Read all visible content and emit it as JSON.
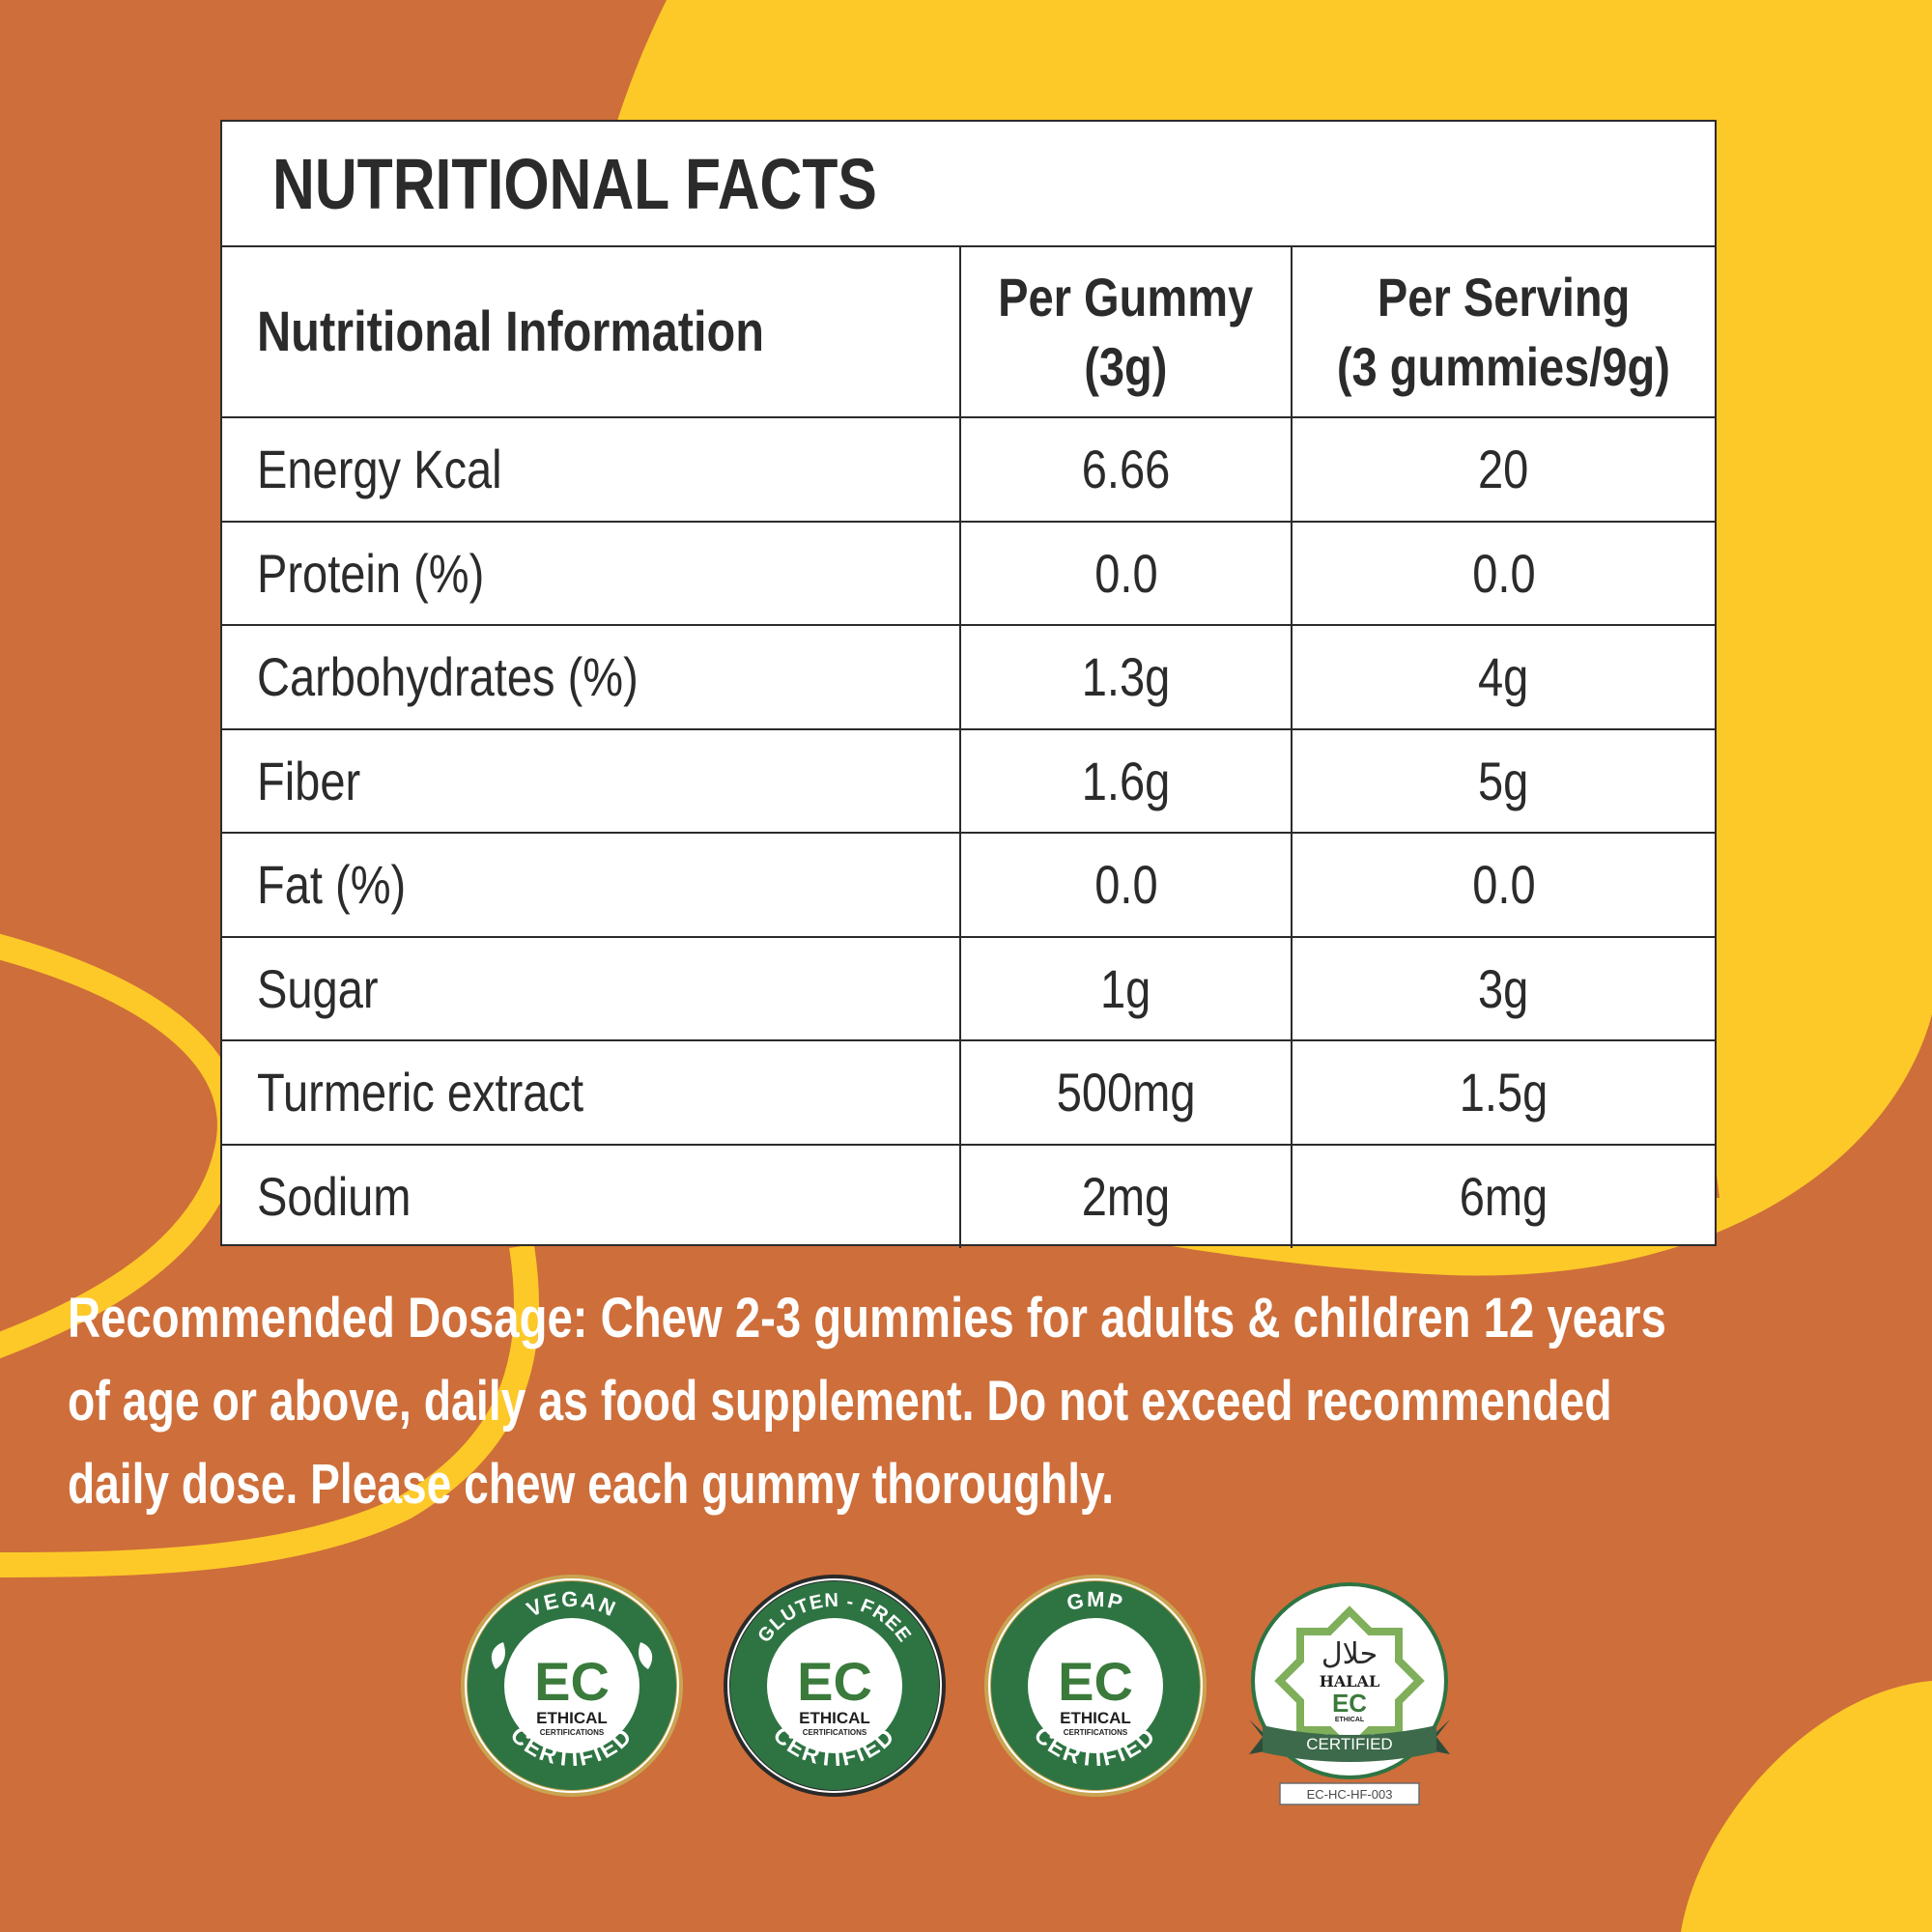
{
  "colors": {
    "background_orange": "#CE6E3A",
    "accent_yellow": "#FDC929",
    "text_dark": "#2B2B2B",
    "badge_green": "#2E7443",
    "badge_gold": "#C9A451",
    "badge_black": "#2A2A2A"
  },
  "facts": {
    "title": "NUTRITIONAL FACTS",
    "headers": {
      "label": "Nutritional Information",
      "per_gummy_line1": "Per Gummy",
      "per_gummy_line2": "(3g)",
      "per_serving_line1": "Per Serving",
      "per_serving_line2": "(3 gummies/9g)"
    },
    "rows": [
      {
        "name": "Energy Kcal",
        "per_gummy": "6.66",
        "per_serving": "20"
      },
      {
        "name": "Protein (%)",
        "per_gummy": "0.0",
        "per_serving": "0.0"
      },
      {
        "name": "Carbohydrates (%)",
        "per_gummy": "1.3g",
        "per_serving": "4g"
      },
      {
        "name": "Fiber",
        "per_gummy": "1.6g",
        "per_serving": "5g"
      },
      {
        "name": "Fat (%)",
        "per_gummy": "0.0",
        "per_serving": "0.0"
      },
      {
        "name": "Sugar",
        "per_gummy": "1g",
        "per_serving": "3g"
      },
      {
        "name": "Turmeric extract",
        "per_gummy": "500mg",
        "per_serving": "1.5g"
      },
      {
        "name": "Sodium",
        "per_gummy": "2mg",
        "per_serving": "6mg"
      }
    ]
  },
  "dosage": {
    "line1": "Recommended Dosage: Chew 2-3 gummies for adults & children 12 years",
    "line2": "of age or above, daily as food supplement. Do not exceed recommended",
    "line3": "daily dose. Please chew each gummy thoroughly."
  },
  "badges": [
    {
      "top_text": "VEGAN",
      "bottom_text": "CERTIFIED",
      "logo": "EC",
      "org": "ETHICAL",
      "org_sub": "CERTIFICATIONS",
      "icon": "leaf-icon"
    },
    {
      "top_text": "GLUTEN - FREE",
      "bottom_text": "CERTIFIED",
      "logo": "EC",
      "org": "ETHICAL",
      "org_sub": "CERTIFICATIONS",
      "icon": "none"
    },
    {
      "top_text": "GMP",
      "bottom_text": "CERTIFIED",
      "logo": "EC",
      "org": "ETHICAL",
      "org_sub": "CERTIFICATIONS",
      "icon": "none"
    },
    {
      "arabic": "حلال",
      "top_text": "HALAL",
      "ribbon": "CERTIFIED",
      "logo": "EC",
      "org": "ETHICAL",
      "code": "EC-HC-HF-003",
      "icon": "star-octagram-icon"
    }
  ]
}
